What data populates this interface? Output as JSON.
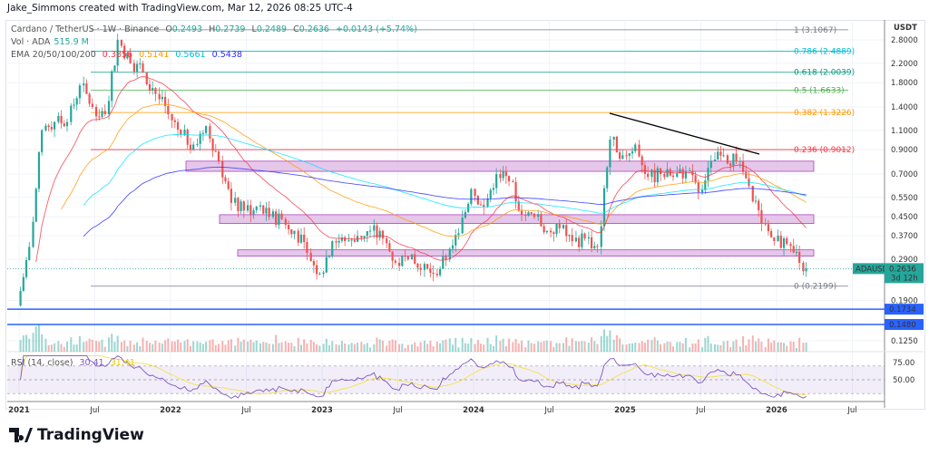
{
  "credit": "Jake_Simmons created with TradingView.com, Mar 12, 2026 08:25 UTC-4",
  "legend": {
    "symbol": "Cardano / TetherUS · 1W · Binance",
    "o_label": "O",
    "o": "0.2493",
    "h_label": "H",
    "h": "0.2739",
    "l_label": "L",
    "l": "0.2489",
    "c_label": "C",
    "c": "0.2636",
    "change": "+0.0143 (+5.74%)",
    "vol_label": "Vol · ADA",
    "vol": "515.9 M",
    "ema_label": "EMA 20/50/100/200",
    "ema20": "0.3856",
    "ema50": "0.5141",
    "ema100": "0.5661",
    "ema200": "0.5438",
    "rsi_label": "RSI (14, close)",
    "rsi": "30.41",
    "rsi_ma": "31.41"
  },
  "colors": {
    "up": "#26a69a",
    "down": "#ef5350",
    "ema20": "#f23645",
    "ema50": "#ff9800",
    "ema100": "#00e5ff",
    "ema200": "#2a2aff",
    "rsi": "#7e57c2",
    "rsi_ma": "#f5e04a",
    "zone": "#e1bee7",
    "hline": "#2962ff"
  },
  "logo": "TradingView",
  "chart_data": {
    "type": "candlestick",
    "symbol": "ADAUSDT",
    "interval": "1W",
    "scale": "log",
    "currency_label": "USDT",
    "y_ticks": [
      "2.8000",
      "2.2000",
      "1.8000",
      "1.4000",
      "1.1000",
      "0.9000",
      "0.7000",
      "0.5500",
      "0.4500",
      "0.3700",
      "0.2900",
      "0.1900",
      "0.1250"
    ],
    "x_ticks": [
      "2021",
      "Jul",
      "2022",
      "Jul",
      "2023",
      "Jul",
      "2024",
      "Jul",
      "2025",
      "Jul",
      "2026",
      "Jul"
    ],
    "monthly_close_approx": {
      "start": "2021-01",
      "open": 0.18,
      "values": [
        0.33,
        1.1,
        1.2,
        1.2,
        1.75,
        1.4,
        1.3,
        2.8,
        2.2,
        2.0,
        1.6,
        1.3,
        1.05,
        0.95,
        1.15,
        0.8,
        0.52,
        0.48,
        0.5,
        0.45,
        0.44,
        0.39,
        0.31,
        0.25,
        0.35,
        0.35,
        0.37,
        0.39,
        0.36,
        0.28,
        0.29,
        0.26,
        0.25,
        0.29,
        0.38,
        0.6,
        0.5,
        0.7,
        0.65,
        0.46,
        0.45,
        0.39,
        0.4,
        0.35,
        0.36,
        0.33,
        1.0,
        0.85,
        0.95,
        0.68,
        0.7,
        0.68,
        0.72,
        0.58,
        0.8,
        0.85,
        0.8,
        0.62,
        0.42,
        0.35,
        0.34,
        0.28,
        0.2636
      ]
    },
    "last_price": {
      "label": "ADAUSDT",
      "value": "0.2636",
      "countdown": "3d 12h"
    },
    "fib_levels": [
      {
        "label": "1 (3.1067)",
        "price": 3.1067,
        "color": "#787b86"
      },
      {
        "label": "0.786 (2.4889)",
        "price": 2.4889,
        "color": "#00bcd4"
      },
      {
        "label": "0.618 (2.0039)",
        "price": 2.0039,
        "color": "#089981"
      },
      {
        "label": "0.5 (1.6633)",
        "price": 1.6633,
        "color": "#4caf50"
      },
      {
        "label": "0.382 (1.3226)",
        "price": 1.3226,
        "color": "#ff9800"
      },
      {
        "label": "0.236 (0.9012)",
        "price": 0.9012,
        "color": "#f23645"
      },
      {
        "label": "0 (0.2199)",
        "price": 0.2199,
        "color": "#787b86"
      }
    ],
    "zones": [
      {
        "low": 0.72,
        "high": 0.8
      },
      {
        "low": 0.42,
        "high": 0.46
      },
      {
        "low": 0.3,
        "high": 0.32
      }
    ],
    "horizontal_lines": [
      {
        "label": "0.1734",
        "price": 0.1734
      },
      {
        "label": "0.1480",
        "price": 0.148
      }
    ],
    "trendline": {
      "from": {
        "date": "2024-12",
        "price": 1.32
      },
      "to": {
        "date": "2025-09",
        "price": 0.87
      }
    },
    "rsi_ticks": [
      "75.00",
      "50.00"
    ],
    "rsi_bands": [
      70,
      30
    ]
  }
}
